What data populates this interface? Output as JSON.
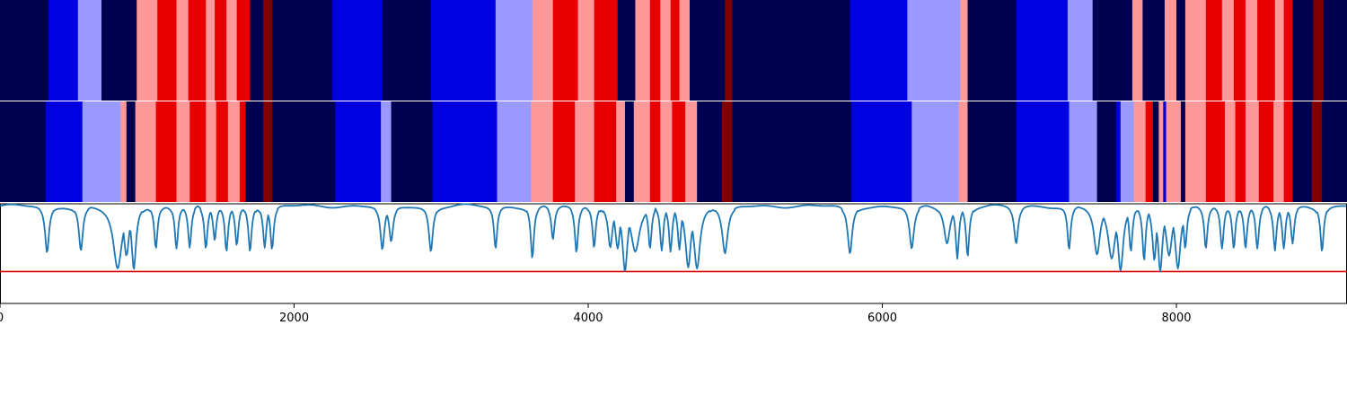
{
  "colors": {
    "state_0": "#000050",
    "state_1": "#0000e0",
    "state_2": "#9999ff",
    "state_3": "#ff9999",
    "state_4": "#e80000",
    "state_5": "#800000",
    "signal_line": "#1f77b4",
    "threshold_line": "#e00000"
  },
  "chart_data": [
    {
      "type": "heatmap",
      "name": "",
      "xlim": [
        0,
        9160
      ],
      "segments": [
        [
          0,
          330,
          0
        ],
        [
          330,
          530,
          1
        ],
        [
          530,
          690,
          2
        ],
        [
          690,
          930,
          0
        ],
        [
          930,
          1070,
          3
        ],
        [
          1070,
          1200,
          4
        ],
        [
          1200,
          1280,
          3
        ],
        [
          1280,
          1400,
          4
        ],
        [
          1400,
          1460,
          3
        ],
        [
          1460,
          1540,
          4
        ],
        [
          1540,
          1610,
          3
        ],
        [
          1610,
          1700,
          4
        ],
        [
          1700,
          1790,
          0
        ],
        [
          1790,
          1850,
          5
        ],
        [
          1850,
          2260,
          0
        ],
        [
          2260,
          2600,
          1
        ],
        [
          2600,
          2930,
          0
        ],
        [
          2930,
          3370,
          1
        ],
        [
          3370,
          3620,
          2
        ],
        [
          3620,
          3760,
          3
        ],
        [
          3760,
          3930,
          4
        ],
        [
          3930,
          4040,
          3
        ],
        [
          4040,
          4200,
          4
        ],
        [
          4200,
          4320,
          0
        ],
        [
          4320,
          4420,
          3
        ],
        [
          4420,
          4490,
          4
        ],
        [
          4490,
          4560,
          3
        ],
        [
          4560,
          4620,
          4
        ],
        [
          4620,
          4690,
          3
        ],
        [
          4690,
          4930,
          0
        ],
        [
          4930,
          4980,
          5
        ],
        [
          4980,
          5780,
          0
        ],
        [
          5780,
          6170,
          1
        ],
        [
          6170,
          6530,
          2
        ],
        [
          6530,
          6580,
          3
        ],
        [
          6580,
          6910,
          0
        ],
        [
          6910,
          7260,
          1
        ],
        [
          7260,
          7430,
          2
        ],
        [
          7430,
          7700,
          0
        ],
        [
          7700,
          7770,
          3
        ],
        [
          7770,
          7920,
          0
        ],
        [
          7920,
          8000,
          3
        ],
        [
          8000,
          8060,
          0
        ],
        [
          8060,
          8200,
          3
        ],
        [
          8200,
          8310,
          4
        ],
        [
          8310,
          8390,
          3
        ],
        [
          8390,
          8470,
          4
        ],
        [
          8470,
          8550,
          3
        ],
        [
          8550,
          8670,
          4
        ],
        [
          8670,
          8730,
          3
        ],
        [
          8730,
          8790,
          4
        ],
        [
          8790,
          8930,
          0
        ],
        [
          8930,
          9000,
          5
        ],
        [
          9000,
          9160,
          0
        ]
      ]
    },
    {
      "type": "heatmap",
      "name": "",
      "xlim": [
        0,
        9160
      ],
      "segments": [
        [
          0,
          310,
          0
        ],
        [
          310,
          560,
          1
        ],
        [
          560,
          820,
          2
        ],
        [
          820,
          860,
          3
        ],
        [
          860,
          920,
          0
        ],
        [
          920,
          1060,
          3
        ],
        [
          1060,
          1200,
          4
        ],
        [
          1200,
          1290,
          3
        ],
        [
          1290,
          1400,
          4
        ],
        [
          1400,
          1470,
          3
        ],
        [
          1470,
          1550,
          4
        ],
        [
          1550,
          1630,
          3
        ],
        [
          1630,
          1670,
          4
        ],
        [
          1670,
          1790,
          0
        ],
        [
          1790,
          1850,
          5
        ],
        [
          1850,
          2280,
          0
        ],
        [
          2280,
          2590,
          1
        ],
        [
          2590,
          2660,
          2
        ],
        [
          2660,
          2940,
          0
        ],
        [
          2940,
          3380,
          1
        ],
        [
          3380,
          3610,
          2
        ],
        [
          3610,
          3760,
          3
        ],
        [
          3760,
          3910,
          4
        ],
        [
          3910,
          4040,
          3
        ],
        [
          4040,
          4190,
          4
        ],
        [
          4190,
          4250,
          3
        ],
        [
          4250,
          4310,
          0
        ],
        [
          4310,
          4420,
          3
        ],
        [
          4420,
          4490,
          4
        ],
        [
          4490,
          4570,
          3
        ],
        [
          4570,
          4660,
          4
        ],
        [
          4660,
          4740,
          3
        ],
        [
          4740,
          4910,
          0
        ],
        [
          4910,
          4980,
          5
        ],
        [
          4980,
          5790,
          0
        ],
        [
          5790,
          6200,
          1
        ],
        [
          6200,
          6520,
          2
        ],
        [
          6520,
          6580,
          3
        ],
        [
          6580,
          6910,
          0
        ],
        [
          6910,
          7270,
          1
        ],
        [
          7270,
          7460,
          2
        ],
        [
          7460,
          7590,
          0
        ],
        [
          7590,
          7620,
          1
        ],
        [
          7620,
          7710,
          2
        ],
        [
          7710,
          7790,
          3
        ],
        [
          7790,
          7840,
          4
        ],
        [
          7840,
          7880,
          0
        ],
        [
          7880,
          7910,
          3
        ],
        [
          7910,
          7930,
          1
        ],
        [
          7930,
          8030,
          3
        ],
        [
          8030,
          8060,
          0
        ],
        [
          8060,
          8200,
          3
        ],
        [
          8200,
          8330,
          4
        ],
        [
          8330,
          8400,
          3
        ],
        [
          8400,
          8470,
          4
        ],
        [
          8470,
          8560,
          3
        ],
        [
          8560,
          8660,
          4
        ],
        [
          8660,
          8730,
          3
        ],
        [
          8730,
          8790,
          4
        ],
        [
          8790,
          8920,
          0
        ],
        [
          8920,
          8990,
          5
        ],
        [
          8990,
          9160,
          0
        ]
      ]
    },
    {
      "type": "line",
      "xlim": [
        0,
        9160
      ],
      "ylim": [
        0,
        1
      ],
      "threshold": 0.32,
      "baseline": 0.98,
      "ticks": [
        0,
        2000,
        4000,
        6000,
        8000
      ],
      "tick_labels": [
        "0",
        "2000",
        "4000",
        "6000",
        "8000"
      ],
      "dips": [
        [
          320,
          0.51,
          16
        ],
        [
          550,
          0.53,
          16
        ],
        [
          800,
          0.35,
          35
        ],
        [
          860,
          0.48,
          22
        ],
        [
          910,
          0.34,
          18
        ],
        [
          1060,
          0.55,
          13
        ],
        [
          1200,
          0.55,
          13
        ],
        [
          1290,
          0.56,
          13
        ],
        [
          1400,
          0.55,
          13
        ],
        [
          1460,
          0.63,
          13
        ],
        [
          1540,
          0.52,
          13
        ],
        [
          1610,
          0.58,
          13
        ],
        [
          1700,
          0.52,
          13
        ],
        [
          1800,
          0.56,
          13
        ],
        [
          1850,
          0.54,
          13
        ],
        [
          2600,
          0.54,
          16
        ],
        [
          2660,
          0.62,
          16
        ],
        [
          2930,
          0.52,
          16
        ],
        [
          3370,
          0.55,
          13
        ],
        [
          3620,
          0.45,
          13
        ],
        [
          3760,
          0.64,
          13
        ],
        [
          3920,
          0.51,
          13
        ],
        [
          4040,
          0.56,
          13
        ],
        [
          4150,
          0.56,
          18
        ],
        [
          4200,
          0.55,
          18
        ],
        [
          4250,
          0.32,
          20
        ],
        [
          4320,
          0.52,
          35
        ],
        [
          4420,
          0.55,
          13
        ],
        [
          4500,
          0.53,
          13
        ],
        [
          4560,
          0.52,
          13
        ],
        [
          4620,
          0.54,
          13
        ],
        [
          4680,
          0.36,
          22
        ],
        [
          4740,
          0.35,
          25
        ],
        [
          4930,
          0.5,
          22
        ],
        [
          5780,
          0.5,
          18
        ],
        [
          6200,
          0.55,
          18
        ],
        [
          6440,
          0.6,
          24
        ],
        [
          6510,
          0.45,
          13
        ],
        [
          6580,
          0.47,
          13
        ],
        [
          6910,
          0.6,
          16
        ],
        [
          7270,
          0.54,
          13
        ],
        [
          7460,
          0.49,
          25
        ],
        [
          7560,
          0.45,
          30
        ],
        [
          7620,
          0.33,
          22
        ],
        [
          7690,
          0.52,
          13
        ],
        [
          7780,
          0.43,
          13
        ],
        [
          7850,
          0.43,
          16
        ],
        [
          7890,
          0.32,
          18
        ],
        [
          7950,
          0.48,
          25
        ],
        [
          8010,
          0.35,
          22
        ],
        [
          8060,
          0.55,
          13
        ],
        [
          8200,
          0.55,
          13
        ],
        [
          8310,
          0.55,
          13
        ],
        [
          8390,
          0.55,
          13
        ],
        [
          8470,
          0.55,
          13
        ],
        [
          8550,
          0.55,
          13
        ],
        [
          8670,
          0.53,
          13
        ],
        [
          8730,
          0.55,
          13
        ],
        [
          8790,
          0.6,
          13
        ],
        [
          8990,
          0.52,
          13
        ]
      ]
    }
  ]
}
